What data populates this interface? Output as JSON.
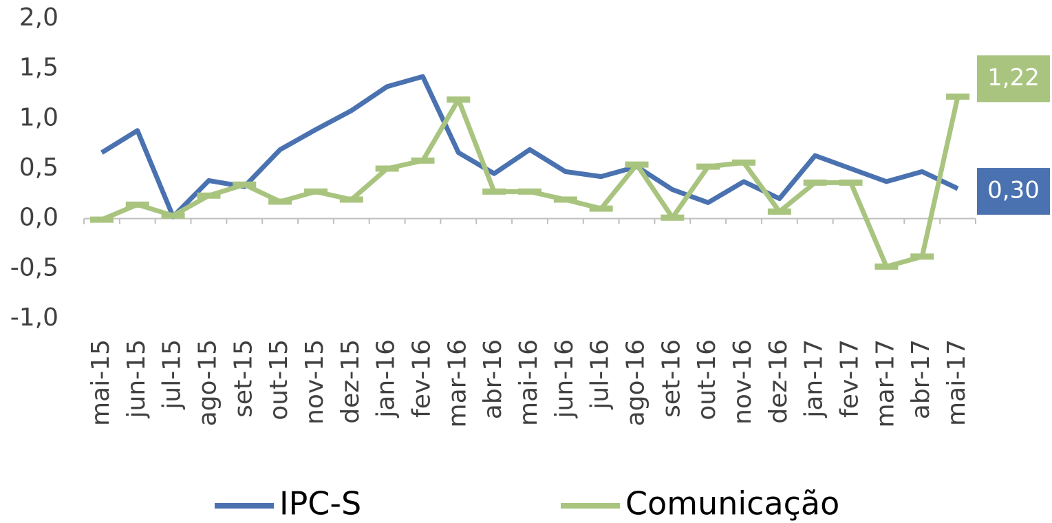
{
  "chart_data": {
    "type": "line",
    "categories": [
      "mai-15",
      "jun-15",
      "jul-15",
      "ago-15",
      "set-15",
      "out-15",
      "nov-15",
      "dez-15",
      "jan-16",
      "fev-16",
      "mar-16",
      "abr-16",
      "mai-16",
      "jun-16",
      "jul-16",
      "ago-16",
      "set-16",
      "out-16",
      "nov-16",
      "dez-16",
      "jan-17",
      "fev-17",
      "mar-17",
      "abr-17",
      "mai-17"
    ],
    "series": [
      {
        "name": "IPC-S",
        "color": "#4a72b0",
        "values": [
          0.66,
          0.88,
          0.02,
          0.38,
          0.32,
          0.69,
          0.89,
          1.08,
          1.32,
          1.42,
          0.66,
          0.45,
          0.69,
          0.47,
          0.42,
          0.52,
          0.29,
          0.16,
          0.37,
          0.2,
          0.63,
          0.5,
          0.37,
          0.47,
          0.3
        ],
        "value_labels": [
          null,
          null,
          null,
          null,
          null,
          null,
          null,
          null,
          null,
          null,
          null,
          null,
          null,
          null,
          null,
          null,
          null,
          null,
          null,
          null,
          null,
          null,
          null,
          null,
          "0,30"
        ]
      },
      {
        "name": "Comunicação",
        "color": "#a9c47f",
        "values": [
          -0.01,
          0.14,
          0.03,
          0.23,
          0.34,
          0.17,
          0.27,
          0.19,
          0.5,
          0.58,
          1.19,
          0.27,
          0.27,
          0.19,
          0.1,
          0.54,
          0.01,
          0.52,
          0.56,
          0.07,
          0.36,
          0.36,
          -0.48,
          -0.38,
          1.22
        ],
        "value_labels": [
          null,
          null,
          null,
          null,
          null,
          null,
          null,
          null,
          null,
          null,
          null,
          null,
          null,
          null,
          null,
          null,
          null,
          null,
          null,
          null,
          null,
          null,
          null,
          null,
          "1,22"
        ]
      }
    ],
    "ylim": [
      -1.0,
      2.0
    ],
    "yticks": [
      {
        "value": -1.0,
        "label": "-1,0"
      },
      {
        "value": -0.5,
        "label": "-0,5"
      },
      {
        "value": 0.0,
        "label": "0,0"
      },
      {
        "value": 0.5,
        "label": "0,5"
      },
      {
        "value": 1.0,
        "label": "1,0"
      },
      {
        "value": 1.5,
        "label": "1,5"
      },
      {
        "value": 2.0,
        "label": "2,0"
      }
    ]
  }
}
